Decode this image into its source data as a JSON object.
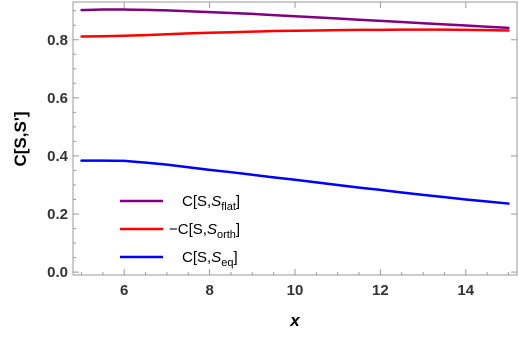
{
  "chart_data": {
    "type": "line",
    "title": "",
    "xlabel": "x",
    "ylabel": "C[S,S']",
    "xlim": [
      4.8,
      15.2
    ],
    "ylim": [
      -0.01,
      0.93
    ],
    "xticks": [
      6,
      8,
      10,
      12,
      14
    ],
    "xtick_labels": [
      "6",
      "8",
      "10",
      "12",
      "14"
    ],
    "yticks": [
      0.0,
      0.2,
      0.4,
      0.6,
      0.8
    ],
    "ytick_labels": [
      "0.0",
      "0.2",
      "0.4",
      "0.6",
      "0.8"
    ],
    "grid": false,
    "legend_position": "bottom-left",
    "series": [
      {
        "key": "flat",
        "color": "#800080",
        "legend": {
          "prefix": "C[S,",
          "symbol": "S",
          "subscript": "flat",
          "suffix": "]"
        },
        "x": [
          5,
          5.5,
          6,
          6.5,
          7,
          7.5,
          8,
          8.5,
          9,
          9.5,
          10,
          10.5,
          11,
          11.5,
          12,
          12.5,
          13,
          13.5,
          14,
          14.5,
          15
        ],
        "y": [
          0.902,
          0.904,
          0.904,
          0.903,
          0.901,
          0.898,
          0.895,
          0.892,
          0.889,
          0.885,
          0.881,
          0.877,
          0.873,
          0.869,
          0.865,
          0.861,
          0.857,
          0.853,
          0.849,
          0.845,
          0.841
        ]
      },
      {
        "key": "orth",
        "color": "#ff0000",
        "legend": {
          "prefix": "−C[S,",
          "symbol": "S",
          "subscript": "orth",
          "suffix": "]"
        },
        "x": [
          5,
          5.5,
          6,
          6.5,
          7,
          7.5,
          8,
          8.5,
          9,
          9.5,
          10,
          10.5,
          11,
          11.5,
          12,
          12.5,
          13,
          13.5,
          14,
          14.5,
          15
        ],
        "y": [
          0.811,
          0.812,
          0.814,
          0.816,
          0.819,
          0.822,
          0.824,
          0.826,
          0.828,
          0.83,
          0.831,
          0.832,
          0.833,
          0.834,
          0.834,
          0.835,
          0.835,
          0.835,
          0.834,
          0.833,
          0.832
        ]
      },
      {
        "key": "eq",
        "color": "#0000ff",
        "legend": {
          "prefix": "C[S,",
          "symbol": "S",
          "subscript": "eq",
          "suffix": "]"
        },
        "x": [
          5,
          5.5,
          6,
          6.5,
          7,
          7.5,
          8,
          8.5,
          9,
          9.5,
          10,
          10.5,
          11,
          11.5,
          12,
          12.5,
          13,
          13.5,
          14,
          14.5,
          15
        ],
        "y": [
          0.384,
          0.384,
          0.383,
          0.377,
          0.37,
          0.361,
          0.352,
          0.344,
          0.335,
          0.326,
          0.318,
          0.309,
          0.3,
          0.291,
          0.283,
          0.274,
          0.266,
          0.258,
          0.25,
          0.243,
          0.236
        ]
      }
    ]
  }
}
